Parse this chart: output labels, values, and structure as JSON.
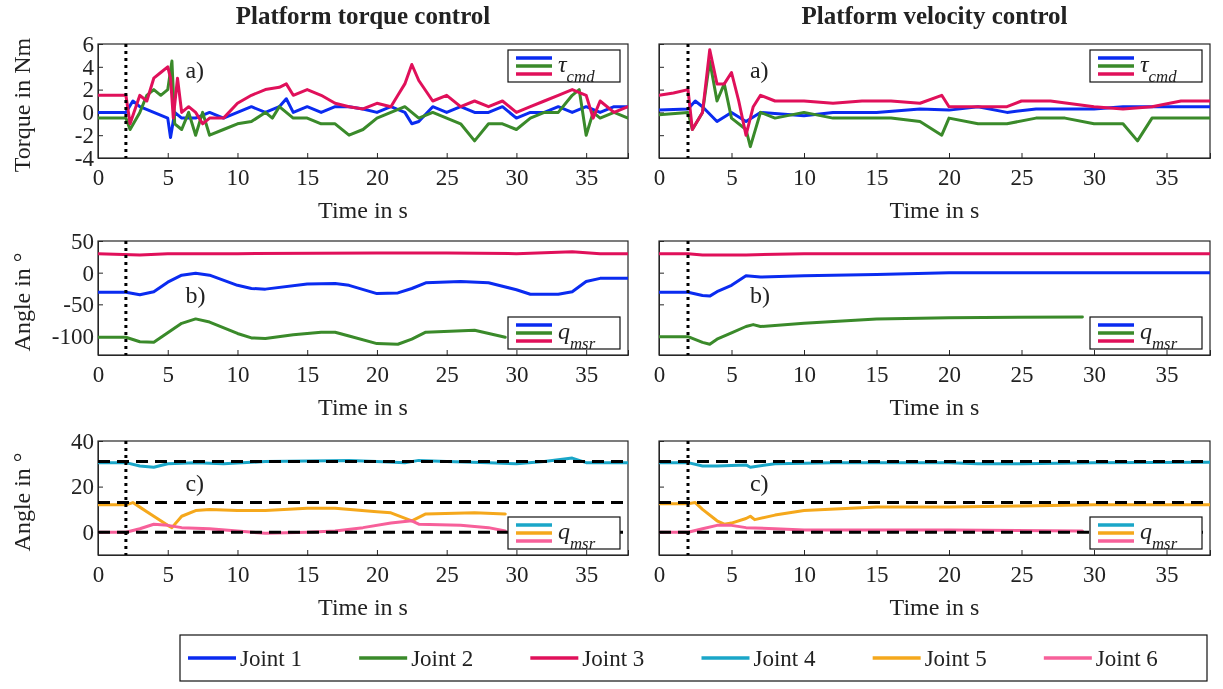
{
  "chart_data": [
    {
      "type": "line",
      "title": "Platform torque control",
      "xlabel": "Time in s",
      "ylabel": "Torque in Nm",
      "legend_title": "τ$_{cmd}$",
      "legend": "bottom",
      "annotations": [
        "a)"
      ],
      "xlim": [
        0,
        38
      ],
      "xticks": [
        0,
        5,
        10,
        15,
        20,
        25,
        30,
        35
      ],
      "ylim": [
        -4,
        6
      ],
      "yticks": [
        -4,
        -2,
        0,
        2,
        4,
        6
      ],
      "ref_lines": [
        {
          "axis": "x",
          "value": 2,
          "line_style": "dotted",
          "color": "#000000"
        }
      ],
      "series": [
        {
          "name": "Joint 1",
          "color": "#0a2bf0",
          "x": [
            0,
            2,
            2.5,
            3,
            4,
            5,
            5.2,
            5.5,
            6,
            7,
            8,
            9,
            10,
            11,
            12,
            13,
            13.5,
            14,
            15,
            16,
            17,
            18,
            19,
            20,
            21,
            22,
            22.5,
            23,
            24,
            25,
            26,
            27,
            28,
            29,
            30,
            31,
            32,
            33,
            34,
            35,
            36,
            37,
            38
          ],
          "values": [
            0,
            0,
            1,
            0.5,
            0,
            -0.5,
            -2.2,
            0,
            -0.5,
            -0.5,
            0,
            -0.5,
            0,
            0.5,
            0,
            0.5,
            1.2,
            0,
            0.5,
            0,
            0.5,
            0.5,
            0.3,
            0,
            0.5,
            0,
            -1,
            -0.8,
            0.5,
            0,
            0.5,
            0,
            0,
            0.5,
            -0.5,
            0,
            0,
            0.5,
            0,
            0.5,
            0,
            0.5,
            0.5
          ]
        },
        {
          "name": "Joint 2",
          "color": "#3a8a2a",
          "x": [
            0,
            2,
            2.3,
            3,
            3.5,
            4,
            4.5,
            5,
            5.3,
            5.5,
            6,
            6.5,
            7,
            7.5,
            8,
            9,
            10,
            11,
            12,
            12.5,
            13,
            14,
            15,
            16,
            17,
            18,
            19,
            20,
            21,
            22,
            23,
            24,
            25,
            26,
            27,
            28,
            29,
            30,
            31,
            32,
            33,
            34,
            34.5,
            35,
            35.5,
            36,
            37,
            38
          ],
          "values": [
            -0.5,
            -0.5,
            -1.5,
            0,
            1.5,
            2,
            1.5,
            2,
            4.5,
            -1,
            -1.5,
            0,
            -2,
            0,
            -2,
            -1.5,
            -1,
            -0.8,
            0,
            -0.5,
            0.5,
            -0.5,
            -0.5,
            -1,
            -1,
            -2,
            -1.5,
            -0.5,
            0,
            0.5,
            -0.5,
            0,
            -0.5,
            -1,
            -2.5,
            -1,
            -1,
            -1.5,
            -0.5,
            0,
            0,
            1.5,
            2,
            -2,
            0,
            -0.5,
            0,
            -0.5
          ]
        },
        {
          "name": "Joint 3",
          "color": "#e0105a",
          "x": [
            0,
            2,
            2.3,
            3,
            3.5,
            4,
            4.5,
            5,
            5.2,
            5.4,
            5.7,
            6,
            6.5,
            7,
            7.5,
            8,
            9,
            10,
            11,
            12,
            13,
            13.5,
            14,
            15,
            16,
            17,
            18,
            19,
            20,
            21,
            21.5,
            22,
            22.5,
            23,
            24,
            25,
            26,
            27,
            28,
            29,
            30,
            31,
            32,
            33,
            34,
            35,
            35.5,
            36,
            37,
            38
          ],
          "values": [
            1.5,
            1.5,
            -1,
            1.5,
            1,
            3,
            3.5,
            4,
            3,
            -0.5,
            3,
            0,
            0.5,
            0,
            -1,
            -0.5,
            -0.5,
            0.8,
            1.5,
            2,
            2.2,
            2.5,
            1.5,
            2,
            1.5,
            0.8,
            0.5,
            0.3,
            0.8,
            0.5,
            1.5,
            2.5,
            4.2,
            2.8,
            1,
            1.5,
            0.5,
            1,
            0.5,
            1,
            0,
            0.5,
            1,
            1.5,
            2,
            1.5,
            -0.5,
            1,
            0,
            0.5
          ]
        }
      ]
    },
    {
      "type": "line",
      "title": "Platform velocity control",
      "xlabel": "Time in s",
      "legend_title": "τ$_{cmd}$",
      "legend": "bottom",
      "annotations": [
        "a)"
      ],
      "tick_labels": "x",
      "xlim": [
        0,
        38
      ],
      "xticks": [
        0,
        5,
        10,
        15,
        20,
        25,
        30,
        35
      ],
      "ylim": [
        -4,
        6
      ],
      "yticks": [
        -4,
        -2,
        0,
        2,
        4,
        6
      ],
      "ref_lines": [
        {
          "axis": "x",
          "value": 2,
          "line_style": "dotted",
          "color": "#000000"
        }
      ],
      "series": [
        {
          "name": "Joint 1",
          "color": "#0a2bf0",
          "x": [
            0,
            2,
            2.5,
            3,
            4,
            5,
            6,
            7,
            10,
            12,
            15,
            18,
            20,
            22,
            24,
            26,
            28,
            30,
            32,
            34,
            36,
            38
          ],
          "values": [
            0.2,
            0.3,
            1,
            0.5,
            -0.8,
            0,
            -0.8,
            0,
            -0.3,
            0,
            0,
            0.3,
            0.2,
            0.5,
            0,
            0.3,
            0.3,
            0.3,
            0.5,
            0.5,
            0.5,
            0.5
          ]
        },
        {
          "name": "Joint 2",
          "color": "#3a8a2a",
          "x": [
            0,
            2,
            2.3,
            3,
            3.5,
            4,
            4.5,
            5,
            6,
            6.3,
            7,
            8,
            10,
            12,
            14,
            16,
            18,
            19.5,
            20,
            22,
            24,
            26,
            28,
            30,
            32,
            33,
            34,
            36,
            38
          ],
          "values": [
            -0.2,
            0,
            -1.5,
            0,
            4.5,
            1,
            2.5,
            -0.5,
            -1.5,
            -3,
            0,
            -0.5,
            0,
            -0.5,
            -0.5,
            -0.5,
            -0.8,
            -2,
            -0.5,
            -1,
            -1,
            -0.5,
            -0.5,
            -1,
            -1,
            -2.5,
            -0.5,
            -0.5,
            -0.5
          ]
        },
        {
          "name": "Joint 3",
          "color": "#e0105a",
          "x": [
            0,
            1,
            2,
            2.3,
            3,
            3.5,
            4,
            4.5,
            5,
            5.5,
            6,
            6.5,
            7,
            8,
            10,
            12,
            14,
            16,
            18,
            19.5,
            20,
            22,
            24,
            25,
            27,
            30,
            32,
            34,
            36,
            38
          ],
          "values": [
            1.5,
            1.7,
            2,
            -1.5,
            0,
            5.5,
            2.5,
            2.5,
            3.5,
            1,
            -2,
            0.5,
            1.5,
            1,
            1,
            0.8,
            1,
            1,
            0.8,
            1.5,
            0.5,
            0.5,
            0.5,
            1,
            1,
            0.5,
            0.3,
            0.5,
            1,
            1
          ]
        }
      ]
    },
    {
      "type": "line",
      "xlabel": "Time in s",
      "ylabel": "Angle in °",
      "legend_title": "q$_{msr}$",
      "legend": "bottom",
      "annotations": [
        "b)"
      ],
      "xlim": [
        0,
        38
      ],
      "xticks": [
        0,
        5,
        10,
        15,
        20,
        25,
        30,
        35
      ],
      "ylim": [
        -130,
        50
      ],
      "yticks": [
        -100,
        -50,
        0,
        50
      ],
      "ref_lines": [
        {
          "axis": "x",
          "value": 2,
          "line_style": "dotted",
          "color": "#000000"
        }
      ],
      "series": [
        {
          "name": "Joint 1",
          "color": "#0a2bf0",
          "x": [
            0,
            2,
            3,
            4,
            5,
            6,
            7,
            8,
            10,
            11,
            12,
            15,
            17,
            18,
            20,
            21.5,
            22.5,
            23.5,
            26,
            28,
            30,
            31,
            33,
            34,
            35,
            36,
            38
          ],
          "values": [
            -31,
            -31,
            -35,
            -30,
            -15,
            -4,
            -1,
            -4,
            -20,
            -25,
            -26,
            -18,
            -17,
            -20,
            -33,
            -32,
            -25,
            -16,
            -14,
            -16,
            -27,
            -34,
            -34,
            -30,
            -14,
            -9,
            -9
          ]
        },
        {
          "name": "Joint 2",
          "color": "#3a8a2a",
          "x": [
            0,
            2,
            3,
            4,
            5,
            6,
            7,
            8,
            10,
            11,
            12,
            14,
            16,
            17,
            18,
            20,
            21.5,
            22.5,
            23.5,
            27,
            29.2
          ],
          "values": [
            -102,
            -102,
            -109,
            -110,
            -95,
            -80,
            -73,
            -78,
            -96,
            -103,
            -104,
            -98,
            -94,
            -94,
            -100,
            -112,
            -113,
            -105,
            -94,
            -91,
            -102
          ]
        },
        {
          "name": "Joint 3",
          "color": "#e0105a",
          "x": [
            0,
            3,
            5,
            10,
            20,
            25,
            30,
            34,
            36,
            38
          ],
          "values": [
            30,
            28,
            30,
            30,
            31,
            31,
            30,
            33,
            30,
            30
          ]
        }
      ]
    },
    {
      "type": "line",
      "xlabel": "Time in s",
      "legend_title": "q$_{msr}$",
      "legend": "bottom",
      "annotations": [
        "b)"
      ],
      "tick_labels": "x",
      "xlim": [
        0,
        38
      ],
      "xticks": [
        0,
        5,
        10,
        15,
        20,
        25,
        30,
        35
      ],
      "ylim": [
        -130,
        50
      ],
      "yticks": [
        -100,
        -50,
        0,
        50
      ],
      "ref_lines": [
        {
          "axis": "x",
          "value": 2,
          "line_style": "dotted",
          "color": "#000000"
        }
      ],
      "series": [
        {
          "name": "Joint 1",
          "color": "#0a2bf0",
          "x": [
            0,
            2,
            3,
            3.5,
            4,
            5,
            6,
            7,
            10,
            15,
            20,
            30,
            38
          ],
          "values": [
            -31,
            -31,
            -36,
            -37,
            -30,
            -20,
            -5,
            -7,
            -5,
            -3,
            0,
            0,
            0
          ]
        },
        {
          "name": "Joint 2",
          "color": "#3a8a2a",
          "x": [
            0,
            2,
            3,
            3.5,
            4,
            5,
            6,
            6.5,
            7,
            10,
            15,
            20,
            29.2
          ],
          "values": [
            -101,
            -101,
            -110,
            -113,
            -105,
            -95,
            -85,
            -82,
            -85,
            -80,
            -73,
            -71,
            -70
          ]
        },
        {
          "name": "Joint 3",
          "color": "#e0105a",
          "x": [
            0,
            2,
            3,
            6,
            10,
            38
          ],
          "values": [
            30,
            30,
            28,
            28,
            30,
            30
          ]
        }
      ]
    },
    {
      "type": "line",
      "xlabel": "Time in s",
      "ylabel": "Angle in °",
      "legend_title": "q$_{msr}$",
      "legend": "bottom",
      "annotations": [
        "c)"
      ],
      "xlim": [
        0,
        38
      ],
      "xticks": [
        0,
        5,
        10,
        15,
        20,
        25,
        30,
        35
      ],
      "ylim": [
        -10,
        40
      ],
      "yticks": [
        0,
        20,
        40
      ],
      "ref_lines": [
        {
          "axis": "x",
          "value": 2,
          "line_style": "dotted",
          "color": "#000000"
        },
        {
          "axis": "y",
          "value": 0,
          "line_style": "dashed",
          "color": "#000000"
        },
        {
          "axis": "y",
          "value": 13,
          "line_style": "dashed",
          "color": "#000000"
        },
        {
          "axis": "y",
          "value": 31,
          "line_style": "dashed",
          "color": "#000000"
        }
      ],
      "series": [
        {
          "name": "Joint 4",
          "color": "#1aa6c8",
          "x": [
            0,
            2,
            3,
            4,
            5,
            7,
            9,
            12,
            18,
            20,
            22,
            23,
            25,
            28,
            30,
            32,
            34,
            35,
            38
          ],
          "values": [
            30.5,
            30.5,
            29,
            28.5,
            30,
            30.5,
            30,
            31,
            31.5,
            31,
            30.5,
            31.5,
            31,
            30.5,
            30,
            31,
            32.5,
            30.5,
            30.5
          ]
        },
        {
          "name": "Joint 5",
          "color": "#f5a81c",
          "x": [
            0,
            2,
            2.5,
            3,
            4,
            5,
            5.3,
            6,
            7,
            8,
            10,
            12,
            15,
            17,
            20,
            21,
            22.5,
            23.5,
            27,
            29.2
          ],
          "values": [
            12,
            12,
            13,
            11,
            7,
            3,
            2,
            7,
            9.5,
            10,
            9.5,
            9.5,
            10.5,
            10.5,
            9,
            8.5,
            5,
            8,
            8.5,
            8
          ]
        },
        {
          "name": "Joint 6",
          "color": "#f7609a",
          "x": [
            0,
            2,
            3,
            4,
            5,
            6,
            8,
            10,
            12,
            15,
            17,
            19,
            21,
            22.5,
            23,
            26,
            28,
            29.2
          ],
          "values": [
            0,
            0,
            1.5,
            3.5,
            3,
            2,
            1.5,
            0.5,
            -0.5,
            0,
            0.5,
            2,
            4,
            5,
            3.5,
            3,
            2,
            0.5
          ]
        }
      ]
    },
    {
      "type": "line",
      "xlabel": "Time in s",
      "legend_title": "q$_{msr}$",
      "legend": "bottom",
      "annotations": [
        "c)"
      ],
      "tick_labels": "x",
      "xlim": [
        0,
        38
      ],
      "xticks": [
        0,
        5,
        10,
        15,
        20,
        25,
        30,
        35
      ],
      "ylim": [
        -10,
        40
      ],
      "yticks": [
        0,
        20,
        40
      ],
      "ref_lines": [
        {
          "axis": "x",
          "value": 2,
          "line_style": "dotted",
          "color": "#000000"
        },
        {
          "axis": "y",
          "value": 0,
          "line_style": "dashed",
          "color": "#000000"
        },
        {
          "axis": "y",
          "value": 13,
          "line_style": "dashed",
          "color": "#000000"
        },
        {
          "axis": "y",
          "value": 31,
          "line_style": "dashed",
          "color": "#000000"
        }
      ],
      "series": [
        {
          "name": "Joint 4",
          "color": "#1aa6c8",
          "x": [
            0,
            2,
            3,
            4,
            6,
            6.3,
            8,
            12,
            20,
            22,
            25,
            30,
            38
          ],
          "values": [
            30.5,
            30.5,
            29,
            29,
            29.5,
            28.5,
            30,
            30.5,
            30.5,
            30,
            30,
            30.5,
            30.7
          ]
        },
        {
          "name": "Joint 5",
          "color": "#f5a81c",
          "x": [
            0,
            2,
            2.5,
            3,
            4,
            4.5,
            5,
            6,
            6.3,
            6.6,
            8,
            10,
            15,
            20,
            25,
            30,
            38
          ],
          "values": [
            12.5,
            12.5,
            13,
            10,
            5,
            3.5,
            4,
            6,
            7,
            5.5,
            7.5,
            9.5,
            11,
            11,
            11.5,
            12,
            12
          ]
        },
        {
          "name": "Joint 6",
          "color": "#f7609a",
          "x": [
            0,
            2,
            3,
            4,
            5,
            6,
            8,
            10,
            20,
            29.2
          ],
          "values": [
            0,
            0,
            1.5,
            3,
            3,
            2,
            1.5,
            1,
            1,
            0.5
          ]
        }
      ]
    }
  ]
}
